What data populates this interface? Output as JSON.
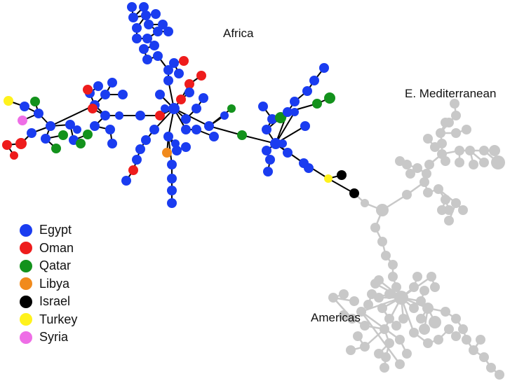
{
  "labels": {
    "africa": "Africa",
    "mediterranean": "E. Mediterranean",
    "americas": "Americas"
  },
  "legend": [
    {
      "label": "Egypt",
      "color": "#1a3cf0"
    },
    {
      "label": "Oman",
      "color": "#ee1c1c"
    },
    {
      "label": "Qatar",
      "color": "#13921c"
    },
    {
      "label": "Libya",
      "color": "#f18a1c"
    },
    {
      "label": "Israel",
      "color": "#000000"
    },
    {
      "label": "Turkey",
      "color": "#fff21c"
    },
    {
      "label": "Syria",
      "color": "#ee6ee6"
    }
  ],
  "colors": {
    "edge_dark": "#000000",
    "edge_grey": "#c8c8c8",
    "node_grey": "#c8c8c8"
  }
}
